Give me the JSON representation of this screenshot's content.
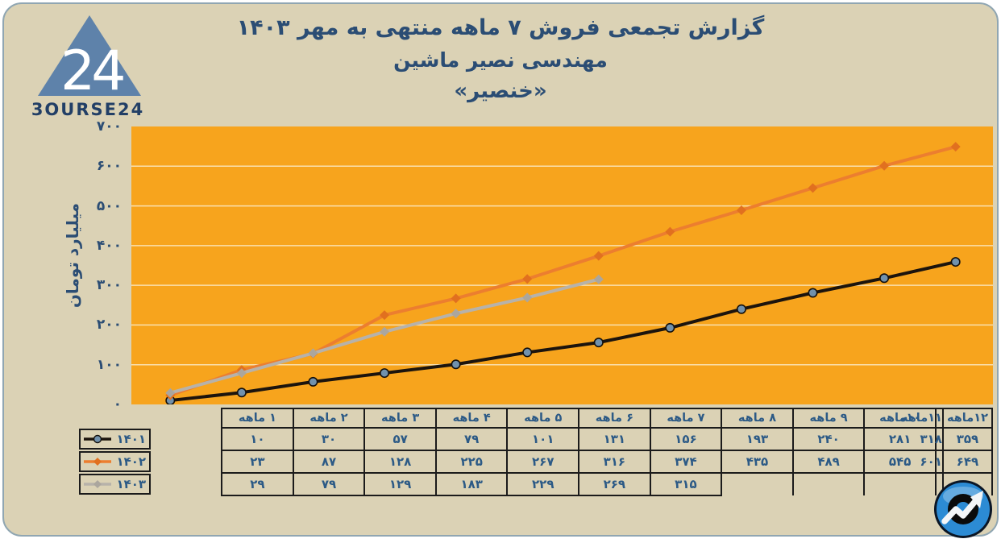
{
  "logo": {
    "brand_text": "3OURSE24",
    "badge_number": "24"
  },
  "header": {
    "title": "گزارش تجمعی فروش ۷ ماهه منتهی به مهر ۱۴۰۳",
    "company": "مهندسی نصیر ماشین",
    "ticker": "«خنصیر»"
  },
  "chart": {
    "y_axis_title": "میلیارد تومان",
    "y_ticks": [
      {
        "value": 0,
        "label": "۰"
      },
      {
        "value": 100,
        "label": "۱۰۰"
      },
      {
        "value": 200,
        "label": "۲۰۰"
      },
      {
        "value": 300,
        "label": "۳۰۰"
      },
      {
        "value": 400,
        "label": "۴۰۰"
      },
      {
        "value": 500,
        "label": "۵۰۰"
      },
      {
        "value": 600,
        "label": "۶۰۰"
      },
      {
        "value": 700,
        "label": "۷۰۰"
      }
    ]
  },
  "chart_data": {
    "type": "line",
    "title": "گزارش تجمعی فروش ۷ ماهه منتهی به مهر ۱۴۰۳",
    "subtitle": "مهندسی نصیر ماشین «خنصیر»",
    "ylabel": "میلیارد تومان",
    "ylim": [
      0,
      700
    ],
    "grid": "horizontal",
    "legend_position": "table-left",
    "categories": [
      "۱ ماهه",
      "۲ ماهه",
      "۳ ماهه",
      "۴ ماهه",
      "۵ ماهه",
      "۶ ماهه",
      "۷ ماهه",
      "۸ ماهه",
      "۹ ماهه",
      "۱۰ماهه",
      "۱۱ماهه",
      "۱۲ماهه"
    ],
    "series": [
      {
        "name": "۱۴۰۱",
        "color": "#1C140D",
        "marker": "circle",
        "marker_fill": "#7191AC",
        "values": [
          10,
          30,
          57,
          79,
          101,
          131,
          156,
          193,
          240,
          281,
          318,
          359
        ]
      },
      {
        "name": "۱۴۰۲",
        "color": "#EC7E2F",
        "marker": "diamond",
        "marker_fill": "#E1701F",
        "values": [
          23,
          87,
          128,
          225,
          267,
          316,
          374,
          435,
          489,
          545,
          601,
          649
        ]
      },
      {
        "name": "۱۴۰۳",
        "color": "#B7B2AA",
        "marker": "diamond",
        "marker_fill": "#ABA69E",
        "values": [
          29,
          79,
          129,
          183,
          229,
          269,
          315
        ]
      }
    ]
  },
  "table": {
    "headers": [
      "۱ ماهه",
      "۲ ماهه",
      "۳ ماهه",
      "۴ ماهه",
      "۵ ماهه",
      "۶ ماهه",
      "۷ ماهه",
      "۸ ماهه",
      "۹ ماهه",
      "۱۰ماهه",
      "۱۱ماهه",
      "۱۲ماهه"
    ],
    "rows": [
      {
        "label": "۱۴۰۱",
        "values": [
          "۱۰",
          "۳۰",
          "۵۷",
          "۷۹",
          "۱۰۱",
          "۱۳۱",
          "۱۵۶",
          "۱۹۳",
          "۲۴۰",
          "۲۸۱",
          "۳۱۸",
          "۳۵۹"
        ]
      },
      {
        "label": "۱۴۰۲",
        "values": [
          "۲۳",
          "۸۷",
          "۱۲۸",
          "۲۲۵",
          "۲۶۷",
          "۳۱۶",
          "۳۷۴",
          "۴۳۵",
          "۴۸۹",
          "۵۴۵",
          "۶۰۱",
          "۶۴۹"
        ]
      },
      {
        "label": "۱۴۰۳",
        "values": [
          "۲۹",
          "۷۹",
          "۱۲۹",
          "۱۸۳",
          "۲۲۹",
          "۲۶۹",
          "۳۱۵",
          "",
          "",
          "",
          "",
          ""
        ]
      }
    ]
  },
  "colors": {
    "card_bg": "#DBD2B5",
    "plot_bg": "#F7A41D",
    "gridline": "#FAEFD4",
    "title_text": "#2B4D74",
    "table_text": "#2C5A86",
    "series_1401": "#1C140D",
    "series_1402": "#EC7E2F",
    "series_1403": "#B7B2AA",
    "marker_1401_fill": "#7191AC",
    "logo_triangle": "#5E82AA",
    "logo_text": "#223F66",
    "badge_blue": "#2C8BD4",
    "table_border": "#1B1B1B"
  }
}
